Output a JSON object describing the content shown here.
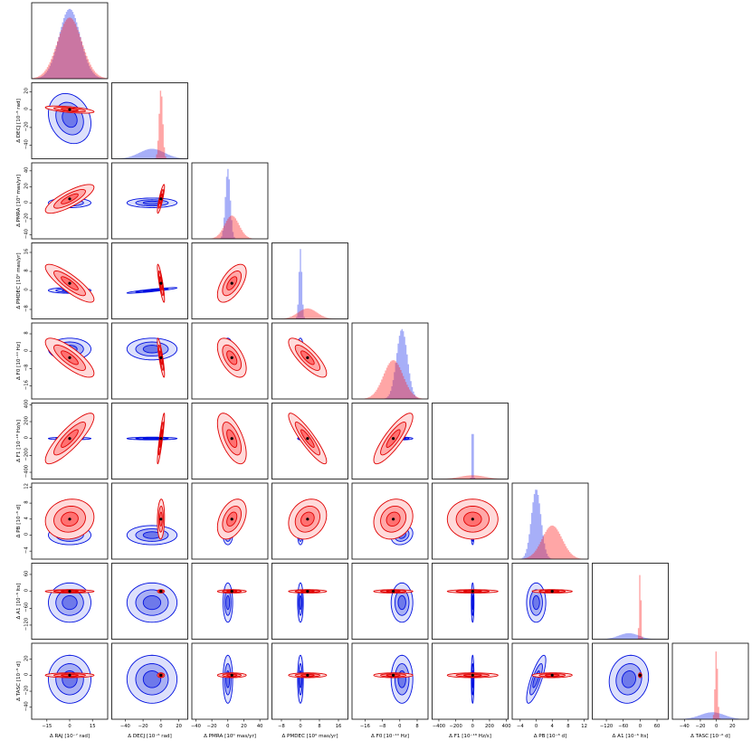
{
  "chart_data": {
    "type": "corner",
    "title": "",
    "parameters": [
      {
        "key": "RAJ",
        "label": "Δ RAJ [10⁻⁷ rad]",
        "ticks": [
          "−15",
          "0",
          "15"
        ],
        "range": [
          -25,
          25
        ],
        "tickvals": [
          -15,
          0,
          15
        ]
      },
      {
        "key": "DECJ",
        "label": "Δ DECJ [10⁻⁶ rad]",
        "ticks": [
          "−40",
          "−20",
          "0",
          "20"
        ],
        "range": [
          -55,
          30
        ],
        "tickvals": [
          -40,
          -20,
          0,
          20
        ]
      },
      {
        "key": "PMRA",
        "label": "Δ PMRA [10⁰ mas/yr]",
        "ticks": [
          "−40",
          "−20",
          "0",
          "20",
          "40"
        ],
        "range": [
          -45,
          50
        ],
        "tickvals": [
          -40,
          -20,
          0,
          20,
          40
        ]
      },
      {
        "key": "PMDEC",
        "label": "Δ PMDEC [10⁰ mas/yr]",
        "ticks": [
          "−8",
          "0",
          "8",
          "16"
        ],
        "range": [
          -12,
          20
        ],
        "tickvals": [
          -8,
          0,
          8,
          16
        ]
      },
      {
        "key": "F0",
        "label": "Δ F0 [10⁻¹⁰ Hz]",
        "ticks": [
          "−16",
          "−8",
          "0",
          "8"
        ],
        "range": [
          -22,
          13
        ],
        "tickvals": [
          -16,
          -8,
          0,
          8
        ]
      },
      {
        "key": "F1",
        "label": "Δ F1 [10⁻¹⁸ Hz/s]",
        "ticks": [
          "−400",
          "−200",
          "0",
          "200",
          "400"
        ],
        "range": [
          -480,
          420
        ],
        "tickvals": [
          -400,
          -200,
          0,
          200,
          400
        ]
      },
      {
        "key": "PB",
        "label": "Δ PB [10⁻⁸ d]",
        "ticks": [
          "−4",
          "0",
          "4",
          "8",
          "12"
        ],
        "range": [
          -6,
          13
        ],
        "tickvals": [
          -4,
          0,
          4,
          8,
          12
        ]
      },
      {
        "key": "A1",
        "label": "Δ A1 [10⁻⁶ lts]",
        "ticks": [
          "−120",
          "−60",
          "0",
          "60"
        ],
        "range": [
          -170,
          100
        ],
        "tickvals": [
          -120,
          -60,
          0,
          60
        ]
      },
      {
        "key": "TASC",
        "label": "Δ TASC [10⁻⁶ d]",
        "ticks": [
          "−40",
          "−20",
          "0",
          "20"
        ],
        "range": [
          -55,
          40
        ],
        "tickvals": [
          -40,
          -20,
          0,
          20
        ]
      }
    ],
    "series": [
      {
        "name": "",
        "color": "#ff0000",
        "means": [
          0,
          0,
          5,
          3,
          -3,
          0,
          4,
          0,
          0
        ],
        "sigmas": [
          8,
          2,
          9,
          4,
          4.5,
          150,
          2.5,
          3,
          1.5
        ]
      },
      {
        "name": "",
        "color": "#0000ff",
        "means": [
          0,
          -10,
          0,
          0,
          1,
          0,
          0,
          -40,
          -5
        ],
        "sigmas": [
          7,
          14,
          3,
          0.6,
          2.5,
          8,
          1.2,
          35,
          15
        ]
      }
    ],
    "correlations_red": {
      "RAJ-DECJ": -0.6,
      "RAJ-PMRA": 0.8,
      "DECJ-PMRA": 0.85,
      "RAJ-PMDEC": -0.85,
      "DECJ-PMDEC": -0.85,
      "PMRA-PMDEC": 0.6,
      "RAJ-F0": -0.8,
      "DECJ-F0": -0.85,
      "PMRA-F0": -0.55,
      "PMDEC-F0": -0.8,
      "RAJ-F1": 0.85,
      "DECJ-F1": 0.9,
      "PMRA-F1": -0.6,
      "PMDEC-F1": -0.9,
      "F0-F1": 0.85,
      "PMRA-PB": 0.4,
      "PMDEC-PB": 0.2,
      "F0-PB": 0.15,
      "PB-A1": -0.05,
      "PB-TASC": 0.05,
      "F1-PB": 0.0,
      "RAJ-PB": 0.1,
      "DECJ-PB": 0.1
    },
    "correlations_blue": {
      "RAJ-DECJ": -0.2,
      "PMRA-PMDEC": 0.5,
      "DECJ-PMDEC": 0.9,
      "RAJ-PMDEC": 0.0,
      "F0-PB": 0.2,
      "PB-TASC": 0.8,
      "A1-TASC": 0.1
    },
    "grid": false,
    "legend": "none"
  }
}
